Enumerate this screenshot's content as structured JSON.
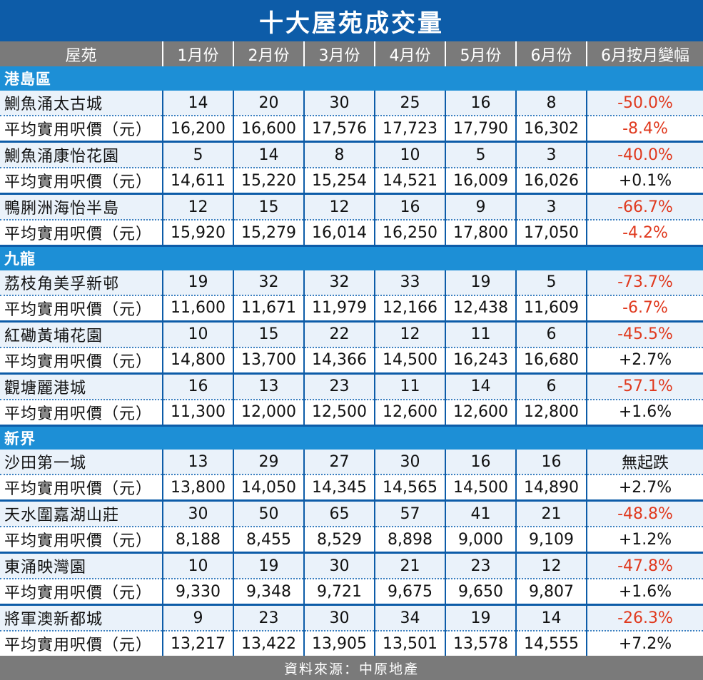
{
  "title": "十大屋苑成交量",
  "headers": [
    "屋苑",
    "1月份",
    "2月份",
    "3月份",
    "4月份",
    "5月份",
    "6月份",
    "6月按月變幅"
  ],
  "price_label": "平均實用呎價（元）",
  "source": "資料來源：中原地產",
  "colors": {
    "title_bg": "#0d5ca8",
    "region_bg": "#1d8fd6",
    "header_bg": "#7a7a7a",
    "row_alt": "#eaf2fa",
    "negative": "#e0391e"
  },
  "chart_data": {
    "type": "table",
    "title": "十大屋苑成交量",
    "columns": [
      "屋苑",
      "1月份",
      "2月份",
      "3月份",
      "4月份",
      "5月份",
      "6月份",
      "6月按月變幅"
    ],
    "regions": [
      {
        "name": "港島區",
        "estates": [
          {
            "name": "鰂魚涌太古城",
            "volume": [
              "14",
              "20",
              "30",
              "25",
              "16",
              "8"
            ],
            "volume_change": "-50.0%",
            "price": [
              "16,200",
              "16,600",
              "17,576",
              "17,723",
              "17,790",
              "16,302"
            ],
            "price_change": "-8.4%"
          },
          {
            "name": "鰂魚涌康怡花園",
            "volume": [
              "5",
              "14",
              "8",
              "10",
              "5",
              "3"
            ],
            "volume_change": "-40.0%",
            "price": [
              "14,611",
              "15,220",
              "15,254",
              "14,521",
              "16,009",
              "16,026"
            ],
            "price_change": "+0.1%"
          },
          {
            "name": "鴨脷洲海怡半島",
            "volume": [
              "12",
              "15",
              "12",
              "16",
              "9",
              "3"
            ],
            "volume_change": "-66.7%",
            "price": [
              "15,920",
              "15,279",
              "16,014",
              "16,250",
              "17,800",
              "17,050"
            ],
            "price_change": "-4.2%"
          }
        ]
      },
      {
        "name": "九龍",
        "estates": [
          {
            "name": "荔枝角美孚新邨",
            "volume": [
              "19",
              "32",
              "32",
              "33",
              "19",
              "5"
            ],
            "volume_change": "-73.7%",
            "price": [
              "11,600",
              "11,671",
              "11,979",
              "12,166",
              "12,438",
              "11,609"
            ],
            "price_change": "-6.7%"
          },
          {
            "name": "紅磡黃埔花園",
            "volume": [
              "10",
              "15",
              "22",
              "12",
              "11",
              "6"
            ],
            "volume_change": "-45.5%",
            "price": [
              "14,800",
              "13,700",
              "14,366",
              "14,500",
              "16,243",
              "16,680"
            ],
            "price_change": "+2.7%"
          },
          {
            "name": "觀塘麗港城",
            "volume": [
              "16",
              "13",
              "23",
              "11",
              "14",
              "6"
            ],
            "volume_change": "-57.1%",
            "price": [
              "11,300",
              "12,000",
              "12,500",
              "12,600",
              "12,600",
              "12,800"
            ],
            "price_change": "+1.6%"
          }
        ]
      },
      {
        "name": "新界",
        "estates": [
          {
            "name": "沙田第一城",
            "volume": [
              "13",
              "29",
              "27",
              "30",
              "16",
              "16"
            ],
            "volume_change": "無起跌",
            "price": [
              "13,800",
              "14,050",
              "14,345",
              "14,565",
              "14,500",
              "14,890"
            ],
            "price_change": "+2.7%"
          },
          {
            "name": "天水圍嘉湖山莊",
            "volume": [
              "30",
              "50",
              "65",
              "57",
              "41",
              "21"
            ],
            "volume_change": "-48.8%",
            "price": [
              "8,188",
              "8,455",
              "8,529",
              "8,898",
              "9,000",
              "9,109"
            ],
            "price_change": "+1.2%"
          },
          {
            "name": "東涌映灣園",
            "volume": [
              "10",
              "19",
              "30",
              "21",
              "23",
              "12"
            ],
            "volume_change": "-47.8%",
            "price": [
              "9,330",
              "9,348",
              "9,721",
              "9,675",
              "9,650",
              "9,807"
            ],
            "price_change": "+1.6%"
          },
          {
            "name": "將軍澳新都城",
            "volume": [
              "9",
              "23",
              "30",
              "34",
              "19",
              "14"
            ],
            "volume_change": "-26.3%",
            "price": [
              "13,217",
              "13,422",
              "13,905",
              "13,501",
              "13,578",
              "14,555"
            ],
            "price_change": "+7.2%"
          }
        ]
      }
    ]
  }
}
